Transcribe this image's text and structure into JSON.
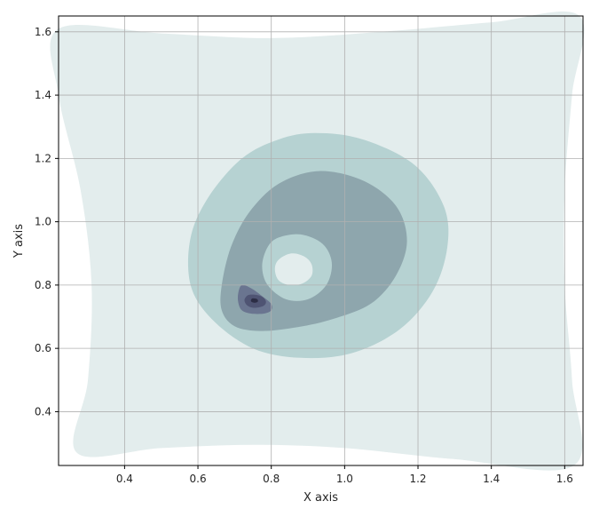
{
  "chart_data": {
    "type": "contour",
    "title": "",
    "xlabel": "X axis",
    "ylabel": "Y axis",
    "xlim": [
      0.22,
      1.65
    ],
    "ylim": [
      0.23,
      1.65
    ],
    "xticks": [
      0.4,
      0.6,
      0.8,
      1.0,
      1.2,
      1.4,
      1.6
    ],
    "xtick_labels": [
      "0.4",
      "0.6",
      "0.8",
      "1.0",
      "1.2",
      "1.4",
      "1.6"
    ],
    "yticks": [
      0.4,
      0.6,
      0.8,
      1.0,
      1.2,
      1.4,
      1.6
    ],
    "ytick_labels": [
      "0.4",
      "0.6",
      "0.8",
      "1.0",
      "1.2",
      "1.4",
      "1.6"
    ],
    "grid": true,
    "colormap": "bone_r",
    "levels": [
      {
        "name": "level-1",
        "color": "#e3eded",
        "points": [
          [
            0.22,
            1.61
          ],
          [
            0.5,
            1.595
          ],
          [
            0.8,
            1.58
          ],
          [
            1.1,
            1.6
          ],
          [
            1.4,
            1.63
          ],
          [
            1.64,
            1.65
          ],
          [
            1.62,
            1.4
          ],
          [
            1.6,
            1.1
          ],
          [
            1.6,
            0.8
          ],
          [
            1.62,
            0.5
          ],
          [
            1.625,
            0.23
          ],
          [
            1.3,
            0.25
          ],
          [
            1.0,
            0.285
          ],
          [
            0.75,
            0.295
          ],
          [
            0.5,
            0.285
          ],
          [
            0.27,
            0.27
          ],
          [
            0.3,
            0.5
          ],
          [
            0.31,
            0.8
          ],
          [
            0.28,
            1.1
          ],
          [
            0.22,
            1.4
          ]
        ]
      },
      {
        "name": "level-2",
        "color": "#b6d2d2",
        "points": [
          [
            0.92,
            1.28
          ],
          [
            1.05,
            1.26
          ],
          [
            1.19,
            1.18
          ],
          [
            1.27,
            1.05
          ],
          [
            1.28,
            0.92
          ],
          [
            1.24,
            0.78
          ],
          [
            1.15,
            0.66
          ],
          [
            1.02,
            0.585
          ],
          [
            0.88,
            0.57
          ],
          [
            0.75,
            0.6
          ],
          [
            0.64,
            0.69
          ],
          [
            0.58,
            0.8
          ],
          [
            0.58,
            0.95
          ],
          [
            0.63,
            1.08
          ],
          [
            0.72,
            1.2
          ],
          [
            0.82,
            1.26
          ]
        ]
      },
      {
        "name": "level-3",
        "color": "#8ea6ad",
        "points": [
          [
            0.93,
            1.16
          ],
          [
            1.05,
            1.13
          ],
          [
            1.14,
            1.05
          ],
          [
            1.17,
            0.94
          ],
          [
            1.14,
            0.83
          ],
          [
            1.07,
            0.74
          ],
          [
            0.96,
            0.69
          ],
          [
            0.86,
            0.665
          ],
          [
            0.77,
            0.655
          ],
          [
            0.7,
            0.67
          ],
          [
            0.665,
            0.72
          ],
          [
            0.665,
            0.8
          ],
          [
            0.69,
            0.92
          ],
          [
            0.74,
            1.03
          ],
          [
            0.82,
            1.12
          ]
        ]
      },
      {
        "name": "level-4",
        "color": "#6a7590",
        "points": [
          [
            0.72,
            0.8
          ],
          [
            0.745,
            0.79
          ],
          [
            0.775,
            0.765
          ],
          [
            0.8,
            0.74
          ],
          [
            0.8,
            0.72
          ],
          [
            0.78,
            0.71
          ],
          [
            0.745,
            0.71
          ],
          [
            0.72,
            0.72
          ],
          [
            0.71,
            0.745
          ],
          [
            0.71,
            0.775
          ]
        ]
      },
      {
        "name": "level-5",
        "color": "#4f5473",
        "points": [
          [
            0.75,
            0.77
          ],
          [
            0.772,
            0.765
          ],
          [
            0.785,
            0.75
          ],
          [
            0.78,
            0.735
          ],
          [
            0.755,
            0.728
          ],
          [
            0.735,
            0.735
          ],
          [
            0.727,
            0.752
          ],
          [
            0.735,
            0.767
          ]
        ]
      },
      {
        "name": "level-6",
        "color": "#2c2d45",
        "points": [
          [
            0.752,
            0.758
          ],
          [
            0.762,
            0.755
          ],
          [
            0.763,
            0.747
          ],
          [
            0.754,
            0.744
          ],
          [
            0.745,
            0.748
          ],
          [
            0.746,
            0.756
          ]
        ]
      }
    ],
    "cutouts": [
      {
        "name": "hole-outer",
        "color": "#b6d2d2",
        "points": [
          [
            0.82,
            0.95
          ],
          [
            0.88,
            0.96
          ],
          [
            0.94,
            0.93
          ],
          [
            0.965,
            0.87
          ],
          [
            0.95,
            0.8
          ],
          [
            0.9,
            0.755
          ],
          [
            0.84,
            0.755
          ],
          [
            0.79,
            0.8
          ],
          [
            0.775,
            0.86
          ],
          [
            0.79,
            0.92
          ]
        ]
      },
      {
        "name": "hole-inner",
        "color": "#e3eded",
        "points": [
          [
            0.855,
            0.9
          ],
          [
            0.89,
            0.89
          ],
          [
            0.91,
            0.865
          ],
          [
            0.91,
            0.83
          ],
          [
            0.885,
            0.805
          ],
          [
            0.85,
            0.8
          ],
          [
            0.82,
            0.815
          ],
          [
            0.81,
            0.85
          ],
          [
            0.82,
            0.88
          ]
        ]
      }
    ]
  }
}
